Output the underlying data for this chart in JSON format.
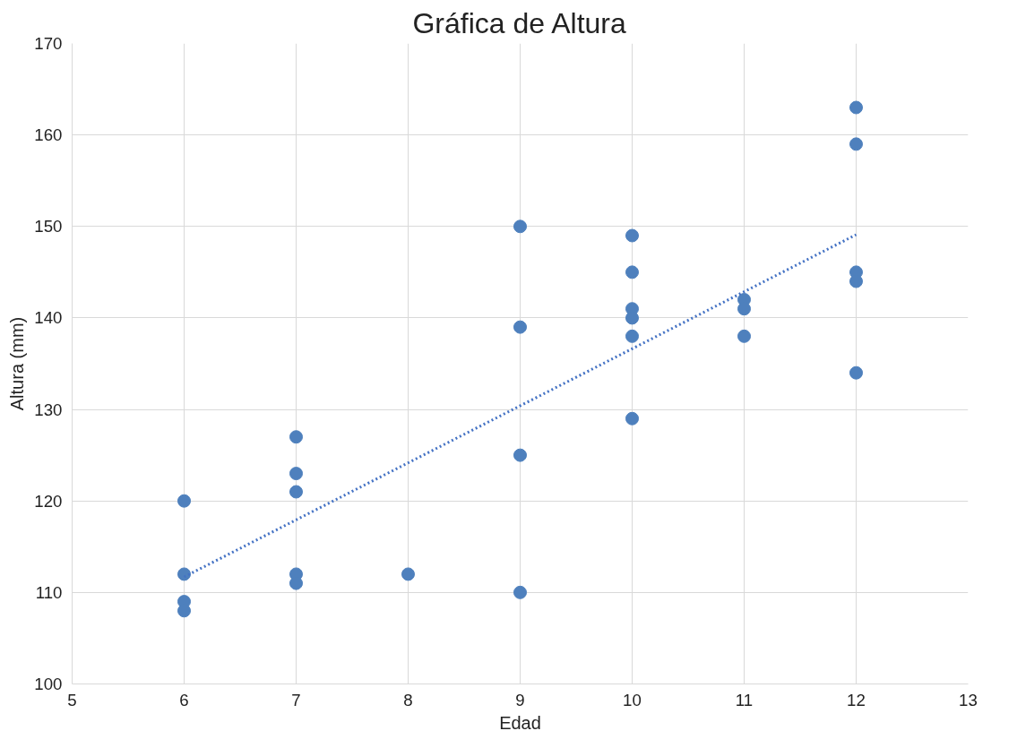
{
  "chart_data": {
    "type": "scatter",
    "title": "Gráfica de Altura",
    "xlabel": "Edad",
    "ylabel": "Altura (mm)",
    "xlim": [
      5,
      13
    ],
    "xticks": [
      5,
      6,
      7,
      8,
      9,
      10,
      11,
      12,
      13
    ],
    "ylim": [
      100,
      170
    ],
    "yticks": [
      100,
      110,
      120,
      130,
      140,
      150,
      160,
      170
    ],
    "grid": true,
    "marker": "circle",
    "series": [
      {
        "color": "#4e80bd",
        "x": [
          6,
          6,
          6,
          6,
          7,
          7,
          7,
          7,
          7,
          8,
          9,
          9,
          9,
          9,
          10,
          10,
          10,
          10,
          10,
          10,
          11,
          11,
          11,
          12,
          12,
          12,
          12,
          12
        ],
        "values": [
          120,
          112,
          109,
          108,
          127,
          123,
          121,
          112,
          111,
          112,
          150,
          139,
          125,
          110,
          149,
          145,
          141,
          140,
          138,
          129,
          142,
          141,
          138,
          163,
          159,
          145,
          144,
          134
        ]
      },
      {
        "type": "line",
        "color": "#4472c4",
        "line_style": "dotted",
        "marker": "none",
        "x": [
          6,
          12
        ],
        "values": [
          111.7,
          149.1
        ]
      }
    ]
  }
}
